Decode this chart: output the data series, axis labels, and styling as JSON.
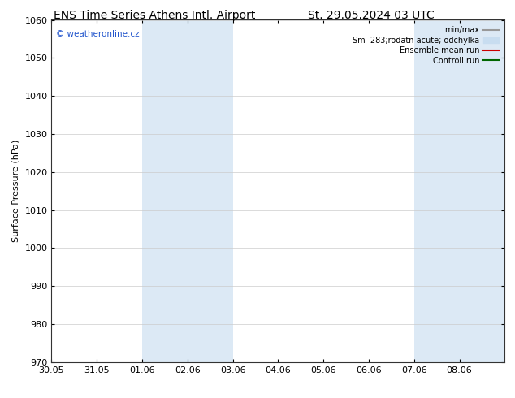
{
  "title_left": "ENS Time Series Athens Intl. Airport",
  "title_right": "St. 29.05.2024 03 UTC",
  "ylabel": "Surface Pressure (hPa)",
  "ylim": [
    970,
    1060
  ],
  "yticks": [
    970,
    980,
    990,
    1000,
    1010,
    1020,
    1030,
    1040,
    1050,
    1060
  ],
  "x_min": 0.0,
  "x_max": 10.0,
  "xtick_labels": [
    "30.05",
    "31.05",
    "01.06",
    "02.06",
    "03.06",
    "04.06",
    "05.06",
    "06.06",
    "07.06",
    "08.06"
  ],
  "xtick_positions": [
    0,
    1,
    2,
    3,
    4,
    5,
    6,
    7,
    8,
    9
  ],
  "shaded_regions": [
    {
      "x_start": 2.0,
      "x_end": 4.0
    },
    {
      "x_start": 8.0,
      "x_end": 10.0
    }
  ],
  "shaded_color": "#dce9f5",
  "watermark_text": "© weatheronline.cz",
  "watermark_color": "#2255cc",
  "legend_entries": [
    {
      "label": "min/max",
      "color": "#999999",
      "lw": 1.5,
      "style": "-"
    },
    {
      "label": "Sm  283;rodatn acute; odchylka",
      "color": "#c8ddf0",
      "lw": 8,
      "style": "-"
    },
    {
      "label": "Ensemble mean run",
      "color": "#cc0000",
      "lw": 1.5,
      "style": "-"
    },
    {
      "label": "Controll run",
      "color": "#006600",
      "lw": 1.5,
      "style": "-"
    }
  ],
  "bg_color": "#ffffff",
  "grid_color": "#cccccc",
  "title_fontsize": 10,
  "tick_fontsize": 8,
  "ylabel_fontsize": 8,
  "watermark_fontsize": 7.5,
  "legend_fontsize": 7
}
